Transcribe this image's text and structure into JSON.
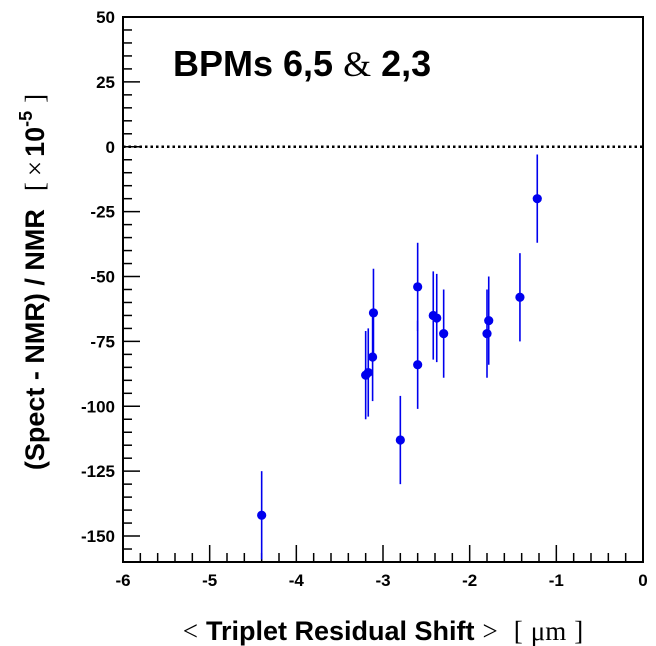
{
  "chart_data": {
    "type": "scatter",
    "title": {
      "part1": "BPMs  6,5",
      "amp": "&",
      "part2": "2,3"
    },
    "xlabel": {
      "open": "<",
      "text": "Triplet Residual Shift",
      "close": ">",
      "unit_open": "[",
      "unit": "μm",
      "unit_close": "]"
    },
    "ylabel": {
      "text": "(Spect - NMR) / NMR",
      "unit_open": "[",
      "unit_times": "×",
      "unit_base": "10",
      "unit_exp": "-5",
      "unit_close": "]"
    },
    "xlim": [
      -6,
      0
    ],
    "ylim": [
      -160,
      50
    ],
    "xticks": [
      "-6",
      "-5",
      "-4",
      "-3",
      "-2",
      "-1",
      "0"
    ],
    "yticks": [
      "50",
      "25",
      "0",
      "-25",
      "-50",
      "-75",
      "-100",
      "-125",
      "-150"
    ],
    "reference_line": {
      "y": 0,
      "style": "dotted"
    },
    "marker_color": "#0000ee",
    "points": [
      {
        "x": -4.4,
        "y": -142,
        "yerr": 17
      },
      {
        "x": -3.2,
        "y": -88,
        "yerr": 17
      },
      {
        "x": -3.17,
        "y": -87,
        "yerr": 17
      },
      {
        "x": -3.12,
        "y": -81,
        "yerr": 17
      },
      {
        "x": -3.11,
        "y": -64,
        "yerr": 17
      },
      {
        "x": -2.8,
        "y": -113,
        "yerr": 17
      },
      {
        "x": -2.6,
        "y": -54,
        "yerr": 17
      },
      {
        "x": -2.6,
        "y": -84,
        "yerr": 17
      },
      {
        "x": -2.42,
        "y": -65,
        "yerr": 17
      },
      {
        "x": -2.38,
        "y": -66,
        "yerr": 17
      },
      {
        "x": -2.3,
        "y": -72,
        "yerr": 17
      },
      {
        "x": -1.8,
        "y": -72,
        "yerr": 17
      },
      {
        "x": -1.78,
        "y": -67,
        "yerr": 17
      },
      {
        "x": -1.42,
        "y": -58,
        "yerr": 17
      },
      {
        "x": -1.22,
        "y": -20,
        "yerr": 17
      }
    ]
  }
}
